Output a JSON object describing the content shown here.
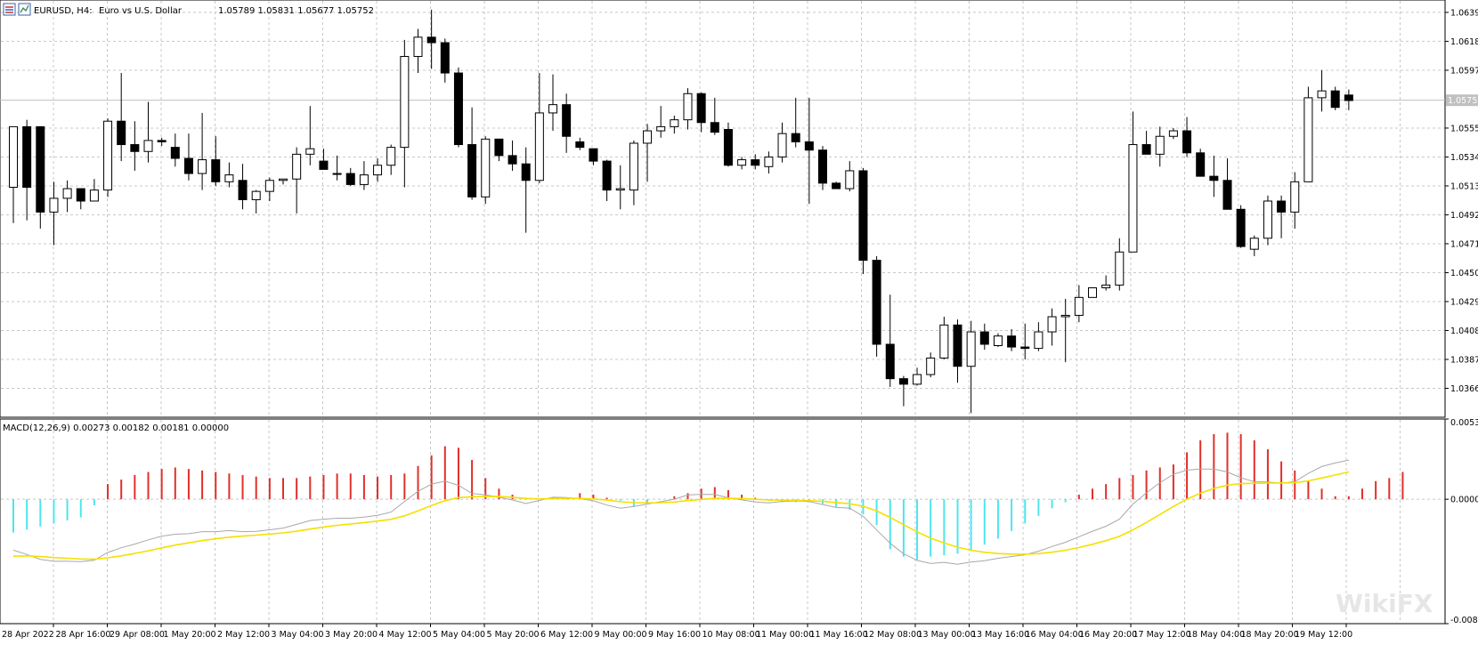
{
  "header": {
    "symbol": "EURUSD, H4:",
    "description": "Euro vs U.S. Dollar",
    "ohlc": "1.05789 1.05831 1.05677 1.05752"
  },
  "colors": {
    "bull_body": "#ffffff",
    "bear_body": "#000000",
    "grid": "#c8c8c8",
    "macd_pos": "#e0302a",
    "macd_neg": "#4de6ee",
    "signal": "#f5e000",
    "macd_line": "#a8a8a8",
    "bid_line": "#c0c0c0"
  },
  "price_badge": "1.05752",
  "macd_header": "MACD(12,26,9) 0.00273 0.00182 0.00181 0.00000",
  "watermark": "WikiFX",
  "chart_data": [
    {
      "type": "candlestick",
      "title": "EURUSD, H4: Euro vs U.S. Dollar",
      "ylim": [
        1.0345,
        1.0648
      ],
      "y_ticks": [
        "1.06390",
        "1.06180",
        "1.05970",
        "1.05550",
        "1.05340",
        "1.05130",
        "1.04920",
        "1.04710",
        "1.04500",
        "1.04290",
        "1.04080",
        "1.03870",
        "1.03660"
      ],
      "x_ticks": [
        "28 Apr 2022",
        "28 Apr 16:00",
        "29 Apr 08:00",
        "1 May 20:00",
        "2 May 12:00",
        "3 May 04:00",
        "3 May 20:00",
        "4 May 12:00",
        "5 May 04:00",
        "5 May 20:00",
        "6 May 12:00",
        "9 May 00:00",
        "9 May 16:00",
        "10 May 08:00",
        "11 May 00:00",
        "11 May 16:00",
        "12 May 08:00",
        "13 May 00:00",
        "13 May 16:00",
        "16 May 04:00",
        "16 May 20:00",
        "17 May 12:00",
        "18 May 04:00",
        "18 May 20:00",
        "19 May 12:00"
      ],
      "last_price": 1.05752,
      "candles": [
        {
          "o": 1.0512,
          "h": 1.0556,
          "l": 1.0486,
          "c": 1.0556
        },
        {
          "o": 1.0556,
          "h": 1.0561,
          "l": 1.0488,
          "c": 1.0512
        },
        {
          "o": 1.0556,
          "h": 1.0556,
          "l": 1.0482,
          "c": 1.0494
        },
        {
          "o": 1.0494,
          "h": 1.0516,
          "l": 1.047,
          "c": 1.0504
        },
        {
          "o": 1.0504,
          "h": 1.0517,
          "l": 1.0494,
          "c": 1.0511
        },
        {
          "o": 1.0511,
          "h": 1.0511,
          "l": 1.0496,
          "c": 1.0502
        },
        {
          "o": 1.0502,
          "h": 1.0518,
          "l": 1.0502,
          "c": 1.051
        },
        {
          "o": 1.051,
          "h": 1.0562,
          "l": 1.0505,
          "c": 1.056
        },
        {
          "o": 1.056,
          "h": 1.0595,
          "l": 1.0531,
          "c": 1.0543
        },
        {
          "o": 1.0543,
          "h": 1.056,
          "l": 1.0524,
          "c": 1.0538
        },
        {
          "o": 1.0538,
          "h": 1.0574,
          "l": 1.053,
          "c": 1.0546
        },
        {
          "o": 1.0546,
          "h": 1.0548,
          "l": 1.0542,
          "c": 1.0545
        },
        {
          "o": 1.0541,
          "h": 1.0551,
          "l": 1.0527,
          "c": 1.0533
        },
        {
          "o": 1.0533,
          "h": 1.0551,
          "l": 1.0517,
          "c": 1.0522
        },
        {
          "o": 1.0522,
          "h": 1.0566,
          "l": 1.051,
          "c": 1.0532
        },
        {
          "o": 1.0532,
          "h": 1.0549,
          "l": 1.0513,
          "c": 1.0516
        },
        {
          "o": 1.0516,
          "h": 1.053,
          "l": 1.0512,
          "c": 1.0521
        },
        {
          "o": 1.0517,
          "h": 1.0529,
          "l": 1.0496,
          "c": 1.0503
        },
        {
          "o": 1.0503,
          "h": 1.051,
          "l": 1.0493,
          "c": 1.0509
        },
        {
          "o": 1.0509,
          "h": 1.0519,
          "l": 1.0502,
          "c": 1.0517
        },
        {
          "o": 1.0517,
          "h": 1.0518,
          "l": 1.0514,
          "c": 1.0518
        },
        {
          "o": 1.0518,
          "h": 1.0541,
          "l": 1.0493,
          "c": 1.0536
        },
        {
          "o": 1.0536,
          "h": 1.0571,
          "l": 1.0528,
          "c": 1.054
        },
        {
          "o": 1.0531,
          "h": 1.054,
          "l": 1.0525,
          "c": 1.0525
        },
        {
          "o": 1.0522,
          "h": 1.0535,
          "l": 1.0517,
          "c": 1.0522
        },
        {
          "o": 1.0522,
          "h": 1.0526,
          "l": 1.0513,
          "c": 1.0514
        },
        {
          "o": 1.0514,
          "h": 1.0531,
          "l": 1.051,
          "c": 1.0521
        },
        {
          "o": 1.0521,
          "h": 1.0533,
          "l": 1.0516,
          "c": 1.0528
        },
        {
          "o": 1.0528,
          "h": 1.0543,
          "l": 1.0521,
          "c": 1.0541
        },
        {
          "o": 1.0541,
          "h": 1.0619,
          "l": 1.0512,
          "c": 1.0607
        },
        {
          "o": 1.0607,
          "h": 1.0627,
          "l": 1.0595,
          "c": 1.0621
        },
        {
          "o": 1.0621,
          "h": 1.0641,
          "l": 1.0598,
          "c": 1.0617
        },
        {
          "o": 1.0617,
          "h": 1.062,
          "l": 1.0588,
          "c": 1.0595
        },
        {
          "o": 1.0595,
          "h": 1.0599,
          "l": 1.0541,
          "c": 1.0543
        },
        {
          "o": 1.0543,
          "h": 1.057,
          "l": 1.0503,
          "c": 1.0505
        },
        {
          "o": 1.0505,
          "h": 1.0549,
          "l": 1.05,
          "c": 1.0547
        },
        {
          "o": 1.0547,
          "h": 1.0547,
          "l": 1.0531,
          "c": 1.0535
        },
        {
          "o": 1.0535,
          "h": 1.0546,
          "l": 1.0524,
          "c": 1.0529
        },
        {
          "o": 1.0529,
          "h": 1.0541,
          "l": 1.0479,
          "c": 1.0517
        },
        {
          "o": 1.0517,
          "h": 1.0595,
          "l": 1.0515,
          "c": 1.0566
        },
        {
          "o": 1.0566,
          "h": 1.0594,
          "l": 1.0553,
          "c": 1.0572
        },
        {
          "o": 1.0572,
          "h": 1.058,
          "l": 1.0537,
          "c": 1.0549
        },
        {
          "o": 1.0545,
          "h": 1.0548,
          "l": 1.0539,
          "c": 1.0541
        },
        {
          "o": 1.054,
          "h": 1.054,
          "l": 1.0528,
          "c": 1.0531
        },
        {
          "o": 1.0531,
          "h": 1.0532,
          "l": 1.0502,
          "c": 1.051
        },
        {
          "o": 1.051,
          "h": 1.0528,
          "l": 1.0496,
          "c": 1.0511
        },
        {
          "o": 1.051,
          "h": 1.0546,
          "l": 1.0499,
          "c": 1.0544
        },
        {
          "o": 1.0544,
          "h": 1.0558,
          "l": 1.0516,
          "c": 1.0553
        },
        {
          "o": 1.0553,
          "h": 1.0571,
          "l": 1.0548,
          "c": 1.0556
        },
        {
          "o": 1.0556,
          "h": 1.0564,
          "l": 1.0551,
          "c": 1.0561
        },
        {
          "o": 1.0561,
          "h": 1.0584,
          "l": 1.0554,
          "c": 1.058
        },
        {
          "o": 1.058,
          "h": 1.0581,
          "l": 1.0552,
          "c": 1.0559
        },
        {
          "o": 1.0559,
          "h": 1.0577,
          "l": 1.055,
          "c": 1.0552
        },
        {
          "o": 1.0554,
          "h": 1.0559,
          "l": 1.0527,
          "c": 1.0528
        },
        {
          "o": 1.0528,
          "h": 1.0534,
          "l": 1.0525,
          "c": 1.0532
        },
        {
          "o": 1.0532,
          "h": 1.0536,
          "l": 1.0525,
          "c": 1.0528
        },
        {
          "o": 1.0527,
          "h": 1.0538,
          "l": 1.0522,
          "c": 1.0534
        },
        {
          "o": 1.0534,
          "h": 1.0559,
          "l": 1.053,
          "c": 1.0551
        },
        {
          "o": 1.0551,
          "h": 1.0577,
          "l": 1.0541,
          "c": 1.0545
        },
        {
          "o": 1.0545,
          "h": 1.0577,
          "l": 1.05,
          "c": 1.0539
        },
        {
          "o": 1.0539,
          "h": 1.0542,
          "l": 1.051,
          "c": 1.0515
        },
        {
          "o": 1.0515,
          "h": 1.0516,
          "l": 1.0511,
          "c": 1.0511
        },
        {
          "o": 1.0511,
          "h": 1.0531,
          "l": 1.0509,
          "c": 1.0524
        },
        {
          "o": 1.0524,
          "h": 1.0526,
          "l": 1.0449,
          "c": 1.0459
        },
        {
          "o": 1.0459,
          "h": 1.0462,
          "l": 1.0389,
          "c": 1.0398
        },
        {
          "o": 1.0398,
          "h": 1.0434,
          "l": 1.0367,
          "c": 1.0373
        },
        {
          "o": 1.0373,
          "h": 1.0375,
          "l": 1.0353,
          "c": 1.0369
        },
        {
          "o": 1.0369,
          "h": 1.0381,
          "l": 1.0368,
          "c": 1.0376
        },
        {
          "o": 1.0376,
          "h": 1.0392,
          "l": 1.0374,
          "c": 1.0388
        },
        {
          "o": 1.0388,
          "h": 1.0418,
          "l": 1.0387,
          "c": 1.0412
        },
        {
          "o": 1.0412,
          "h": 1.0416,
          "l": 1.037,
          "c": 1.0382
        },
        {
          "o": 1.0382,
          "h": 1.0415,
          "l": 1.0348,
          "c": 1.0407
        },
        {
          "o": 1.0407,
          "h": 1.0413,
          "l": 1.0394,
          "c": 1.0398
        },
        {
          "o": 1.0397,
          "h": 1.0406,
          "l": 1.0396,
          "c": 1.0404
        },
        {
          "o": 1.0404,
          "h": 1.0409,
          "l": 1.0393,
          "c": 1.0396
        },
        {
          "o": 1.0396,
          "h": 1.0413,
          "l": 1.0387,
          "c": 1.0395
        },
        {
          "o": 1.0395,
          "h": 1.0414,
          "l": 1.0393,
          "c": 1.0407
        },
        {
          "o": 1.0407,
          "h": 1.0424,
          "l": 1.0397,
          "c": 1.0418
        },
        {
          "o": 1.0418,
          "h": 1.0431,
          "l": 1.0385,
          "c": 1.0419
        },
        {
          "o": 1.0419,
          "h": 1.0441,
          "l": 1.0414,
          "c": 1.0432
        },
        {
          "o": 1.0432,
          "h": 1.0439,
          "l": 1.0432,
          "c": 1.0439
        },
        {
          "o": 1.0439,
          "h": 1.0448,
          "l": 1.0437,
          "c": 1.0441
        },
        {
          "o": 1.0441,
          "h": 1.0475,
          "l": 1.0437,
          "c": 1.0465
        },
        {
          "o": 1.0465,
          "h": 1.0567,
          "l": 1.0465,
          "c": 1.0543
        },
        {
          "o": 1.0543,
          "h": 1.0553,
          "l": 1.0536,
          "c": 1.0536
        },
        {
          "o": 1.0536,
          "h": 1.0556,
          "l": 1.0527,
          "c": 1.0549
        },
        {
          "o": 1.0549,
          "h": 1.0555,
          "l": 1.0547,
          "c": 1.0553
        },
        {
          "o": 1.0553,
          "h": 1.0563,
          "l": 1.0534,
          "c": 1.0537
        },
        {
          "o": 1.0537,
          "h": 1.054,
          "l": 1.052,
          "c": 1.052
        },
        {
          "o": 1.052,
          "h": 1.0535,
          "l": 1.0505,
          "c": 1.0517
        },
        {
          "o": 1.0517,
          "h": 1.0533,
          "l": 1.0496,
          "c": 1.0496
        },
        {
          "o": 1.0496,
          "h": 1.0499,
          "l": 1.0468,
          "c": 1.0469
        },
        {
          "o": 1.0467,
          "h": 1.0477,
          "l": 1.0462,
          "c": 1.0475
        },
        {
          "o": 1.0475,
          "h": 1.0506,
          "l": 1.047,
          "c": 1.0502
        },
        {
          "o": 1.0502,
          "h": 1.0506,
          "l": 1.0475,
          "c": 1.0494
        },
        {
          "o": 1.0494,
          "h": 1.0523,
          "l": 1.0482,
          "c": 1.0516
        },
        {
          "o": 1.0516,
          "h": 1.0585,
          "l": 1.0516,
          "c": 1.0577
        },
        {
          "o": 1.0577,
          "h": 1.0597,
          "l": 1.0567,
          "c": 1.0582
        },
        {
          "o": 1.0582,
          "h": 1.0585,
          "l": 1.0568,
          "c": 1.057
        },
        {
          "o": 1.0579,
          "h": 1.0583,
          "l": 1.0568,
          "c": 1.0575
        }
      ]
    },
    {
      "type": "macd",
      "title": "MACD(12,26,9)",
      "ylim": [
        -0.00822,
        0.0053
      ],
      "y_ticks": [
        "0.00530",
        "0.00000",
        "-0.00822"
      ],
      "histogram": [
        -0.0022,
        -0.002,
        -0.0018,
        -0.0016,
        -0.0014,
        -0.0012,
        -0.0004,
        0.001,
        0.0013,
        0.0016,
        0.0018,
        0.002,
        0.0021,
        0.002,
        0.0019,
        0.0018,
        0.0017,
        0.0016,
        0.0015,
        0.0014,
        0.0014,
        0.0014,
        0.0015,
        0.0016,
        0.0017,
        0.0017,
        0.0016,
        0.0015,
        0.0016,
        0.0017,
        0.0022,
        0.0029,
        0.0035,
        0.0034,
        0.0026,
        0.0014,
        0.0007,
        0.0003,
        0.0001,
        0.0,
        0.0,
        0.0001,
        0.0004,
        0.0003,
        0.0001,
        -0.0001,
        -0.0005,
        -0.0002,
        0.0,
        0.0002,
        0.0004,
        0.0007,
        0.0008,
        0.0006,
        0.0003,
        0.0001,
        -0.0001,
        -0.0002,
        -0.0002,
        -0.0002,
        -0.0003,
        -0.0005,
        -0.0007,
        -0.001,
        -0.0017,
        -0.0033,
        -0.0038,
        -0.004,
        -0.0038,
        -0.0037,
        -0.0036,
        -0.0034,
        -0.003,
        -0.0026,
        -0.0021,
        -0.0016,
        -0.0011,
        -0.0006,
        -0.0002,
        0.0003,
        0.0007,
        0.001,
        0.0014,
        0.0016,
        0.0019,
        0.0021,
        0.0023,
        0.0031,
        0.0039,
        0.0043,
        0.0044,
        0.0043,
        0.0039,
        0.0033,
        0.0025,
        0.0019,
        0.0012,
        0.0007,
        0.0002,
        0.0002,
        0.0007,
        0.0012,
        0.0014,
        0.0018
      ]
    }
  ]
}
